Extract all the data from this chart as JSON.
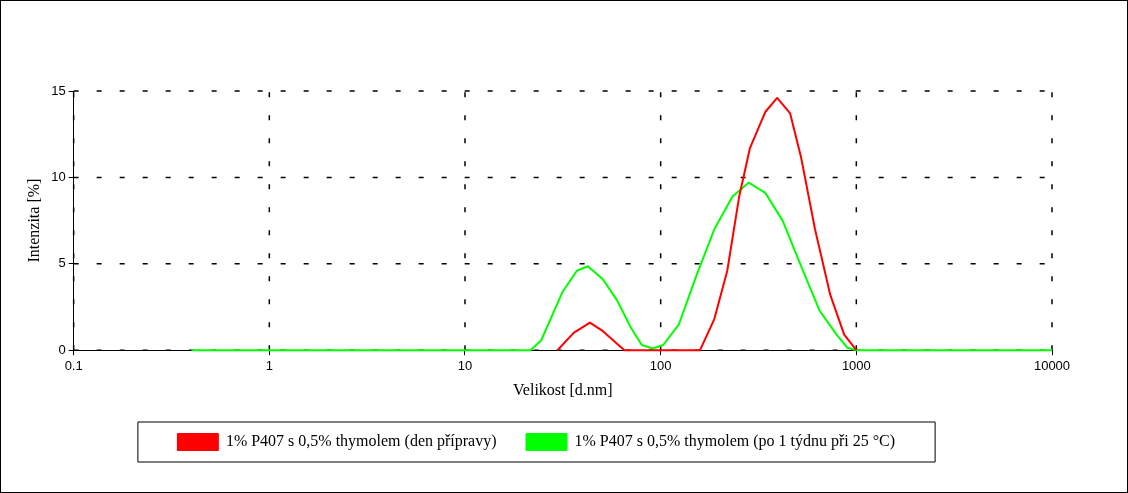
{
  "chart_data": {
    "type": "line",
    "xlabel": "Velikost [d.nm]",
    "ylabel": "Intenzita [%]",
    "log": "x",
    "xlim": [
      0.1,
      10000
    ],
    "xticks": [
      0.1,
      1,
      10,
      100,
      1000,
      10000
    ],
    "ylim": [
      0,
      15
    ],
    "yticks": [
      0,
      5,
      10,
      15
    ],
    "grid": true,
    "legend": "bottom",
    "marker": "none",
    "line_style": "solid",
    "series": [
      {
        "name": "1% P407 s 0,5% thymolem (den přípravy)",
        "color": "#ff0000",
        "x": [
          29.7,
          35.9,
          43.5,
          50.7,
          65.3,
          159,
          188,
          219,
          252,
          286,
          343,
          394,
          459,
          521,
          615,
          736,
          867,
          1000
        ],
        "values": [
          0,
          1.0,
          1.6,
          1.1,
          0,
          0,
          1.8,
          4.6,
          8.9,
          11.7,
          13.8,
          14.6,
          13.7,
          11.2,
          7.0,
          3.2,
          0.9,
          0
        ]
      },
      {
        "name": "1% P407 s 0,5% thymolem (po 1 týdnu při 25 °C)",
        "color": "#00ff00",
        "x": [
          0.4,
          21.6,
          24.5,
          31.6,
          37.3,
          42.4,
          50.7,
          59.8,
          70.5,
          80.1,
          91,
          103,
          124,
          151,
          188,
          233,
          282,
          343,
          420,
          521,
          648,
          793,
          901,
          1000,
          10000
        ],
        "values": [
          0,
          0,
          0.56,
          3.4,
          4.6,
          4.86,
          4.1,
          2.9,
          1.3,
          0.3,
          0.1,
          0.3,
          1.5,
          4.2,
          7.0,
          8.9,
          9.7,
          9.1,
          7.5,
          4.9,
          2.3,
          0.9,
          0.14,
          0,
          0
        ]
      }
    ]
  }
}
